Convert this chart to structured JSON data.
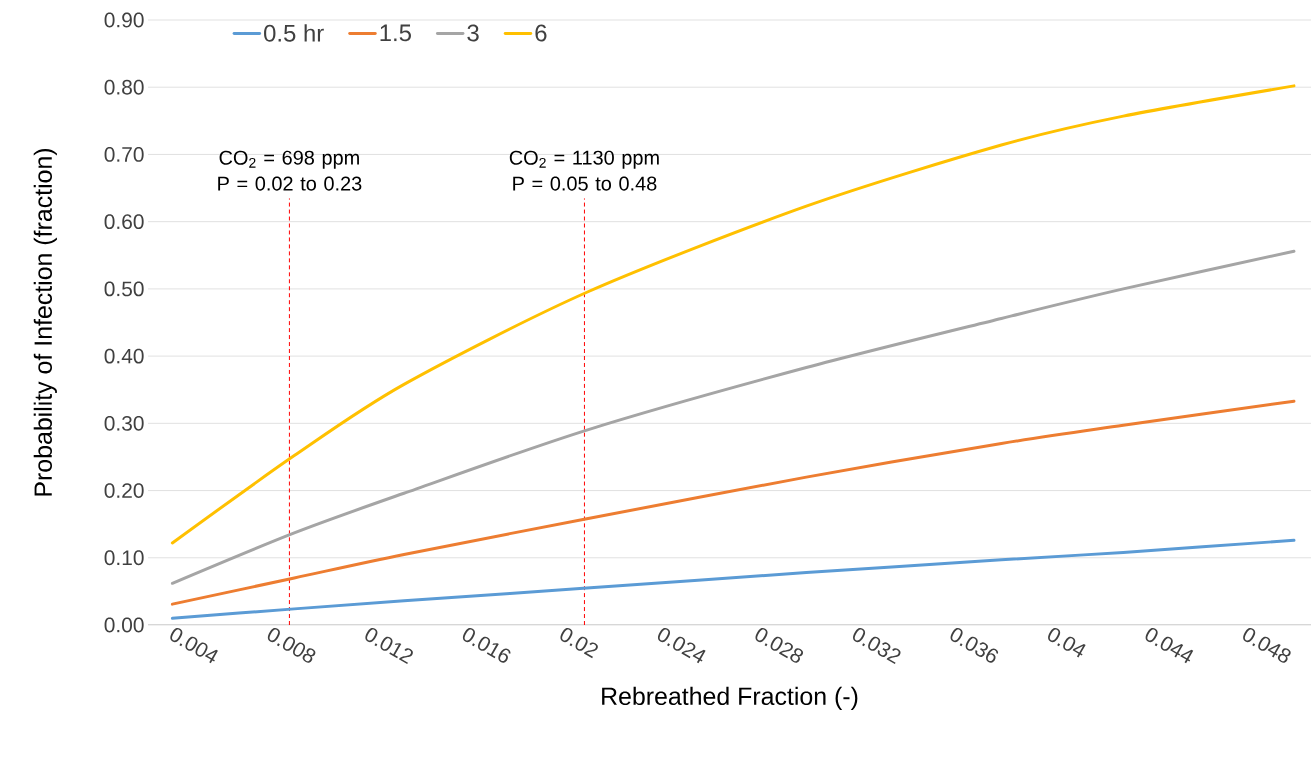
{
  "chart_data": {
    "type": "line",
    "xlabel": "Rebreathed Fraction (-)",
    "ylabel": "Probability of Infection (fraction)",
    "xlim": [
      0.002,
      0.0497
    ],
    "xticks": [
      0.004,
      0.008,
      0.012,
      0.016,
      0.02,
      0.024,
      0.028,
      0.032,
      0.036,
      0.04,
      0.044,
      0.048
    ],
    "ylim": [
      0,
      0.9
    ],
    "yticks": [
      {
        "value": 0,
        "label": "0.00"
      },
      {
        "value": 0.1,
        "label": "0.10"
      },
      {
        "value": 0.2,
        "label": "0.20"
      },
      {
        "value": 0.3,
        "label": "0.30"
      },
      {
        "value": 0.4,
        "label": "0.40"
      },
      {
        "value": 0.5,
        "label": "0.50"
      },
      {
        "value": 0.6,
        "label": "0.60"
      },
      {
        "value": 0.7,
        "label": "0.70"
      },
      {
        "value": 0.8,
        "label": "0.80"
      },
      {
        "value": 0.9,
        "label": "0.90"
      }
    ],
    "x": [
      0.003,
      0.008,
      0.0125,
      0.02,
      0.029,
      0.037,
      0.042,
      0.049
    ],
    "series": [
      {
        "name": "0.5 hr",
        "color": "#5b9bd5",
        "values": [
          0.01,
          0.024,
          0.036,
          0.055,
          0.078,
          0.097,
          0.108,
          0.126
        ]
      },
      {
        "name": "1.5",
        "color": "#ed7d31",
        "values": [
          0.031,
          0.07,
          0.105,
          0.158,
          0.22,
          0.27,
          0.297,
          0.333
        ]
      },
      {
        "name": "3",
        "color": "#a5a5a5",
        "values": [
          0.062,
          0.137,
          0.196,
          0.29,
          0.383,
          0.456,
          0.5,
          0.556
        ]
      },
      {
        "name": "6",
        "color": "#ffc000",
        "values": [
          0.122,
          0.252,
          0.358,
          0.495,
          0.623,
          0.714,
          0.757,
          0.802
        ]
      }
    ],
    "ref_lines": [
      {
        "axis": "x",
        "value": 0.0078,
        "color": "#ff0000",
        "line_style": "dashed"
      },
      {
        "axis": "x",
        "value": 0.0199,
        "color": "#ff0000",
        "line_style": "dashed"
      }
    ],
    "annotations": [
      "CO$_{2}$ = 698 ppm P = 0.02 to 0.23",
      "CO$_{2}$ = 1130 ppm P = 0.05 to 0.48"
    ],
    "grid": "y",
    "legend": "top left",
    "marker": "none",
    "line_style": "solid"
  }
}
